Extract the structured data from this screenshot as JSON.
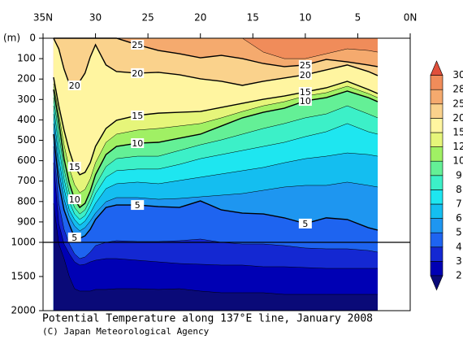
{
  "chart_data": {
    "type": "contour",
    "title": "Potential Temperature along 137°E line, January 2008",
    "credit": "(C) Japan Meteorological Agency",
    "ylabel": "(m)",
    "xlim": [
      35,
      0
    ],
    "xticks": [
      {
        "value": 35,
        "label": "35N"
      },
      30,
      25,
      20,
      15,
      10,
      5,
      {
        "value": 0,
        "label": "0N"
      }
    ],
    "ylim": [
      0,
      2000
    ],
    "ybreak": 1000,
    "yticks": [
      0,
      100,
      200,
      300,
      400,
      500,
      600,
      700,
      800,
      900,
      1000,
      1500,
      2000
    ],
    "levels": [
      2,
      3,
      4,
      5,
      6,
      7,
      8,
      9,
      10,
      12,
      15,
      20,
      25,
      28,
      30
    ],
    "colors": [
      "#0a0a78",
      "#0000b4",
      "#1428d2",
      "#1e64f0",
      "#1e96f0",
      "#14bef0",
      "#1ee6f0",
      "#3cf0c8",
      "#64f096",
      "#a0f064",
      "#e6f57a",
      "#fff5a0",
      "#fad28c",
      "#f5aa6e",
      "#f08c5a",
      "#e0503c"
    ],
    "x": [
      34,
      33.5,
      33,
      32.5,
      32,
      31.5,
      31,
      30.5,
      30,
      29,
      28,
      26,
      24,
      22,
      20,
      18,
      16,
      14,
      12,
      10,
      8,
      6,
      4,
      3.1
    ],
    "isotherms": [
      {
        "level": 28,
        "labeled": false,
        "depths": [
          0,
          0,
          0,
          0,
          0,
          0,
          0,
          0,
          0,
          0,
          0,
          0,
          0,
          0,
          0,
          0,
          0,
          68,
          100,
          100,
          76,
          52,
          60,
          68
        ]
      },
      {
        "level": 25,
        "labeled": true,
        "depths": [
          0,
          0,
          0,
          0,
          0,
          0,
          0,
          0,
          0,
          0,
          0,
          32,
          60,
          76,
          96,
          84,
          100,
          124,
          139,
          131,
          104,
          116,
          131,
          139
        ]
      },
      {
        "level": 20,
        "labeled": true,
        "depths": [
          0,
          52,
          151,
          223,
          231,
          211,
          171,
          92,
          32,
          131,
          163,
          171,
          167,
          179,
          199,
          211,
          231,
          211,
          195,
          179,
          155,
          131,
          163,
          183
        ]
      },
      {
        "level": 15,
        "labeled": true,
        "depths": [
          191,
          331,
          450,
          550,
          629,
          669,
          657,
          610,
          530,
          442,
          402,
          378,
          367,
          363,
          359,
          339,
          319,
          299,
          283,
          263,
          243,
          211,
          251,
          271
        ]
      },
      {
        "level": 12,
        "labeled": false,
        "depths": [
          223,
          371,
          522,
          637,
          717,
          757,
          741,
          689,
          610,
          510,
          470,
          450,
          442,
          430,
          418,
          390,
          359,
          331,
          311,
          283,
          267,
          235,
          271,
          291
        ]
      },
      {
        "level": 10,
        "labeled": true,
        "depths": [
          251,
          410,
          590,
          709,
          789,
          829,
          809,
          749,
          669,
          570,
          530,
          514,
          510,
          490,
          470,
          430,
          390,
          363,
          343,
          307,
          291,
          259,
          291,
          311
        ]
      },
      {
        "level": 9,
        "labeled": false,
        "depths": [
          291,
          470,
          641,
          757,
          829,
          861,
          841,
          789,
          721,
          629,
          590,
          578,
          578,
          550,
          522,
          498,
          470,
          442,
          418,
          390,
          371,
          331,
          371,
          390
        ]
      },
      {
        "level": 8,
        "labeled": false,
        "depths": [
          331,
          530,
          689,
          801,
          861,
          888,
          869,
          821,
          761,
          681,
          649,
          641,
          641,
          618,
          590,
          570,
          550,
          530,
          510,
          482,
          458,
          418,
          458,
          470
        ]
      },
      {
        "level": 7,
        "labeled": false,
        "depths": [
          371,
          590,
          737,
          841,
          888,
          916,
          896,
          857,
          809,
          737,
          713,
          705,
          713,
          697,
          681,
          665,
          649,
          633,
          610,
          590,
          578,
          562,
          570,
          578
        ]
      },
      {
        "level": 6,
        "labeled": false,
        "depths": [
          418,
          649,
          789,
          873,
          920,
          944,
          928,
          896,
          857,
          801,
          781,
          781,
          789,
          785,
          777,
          769,
          761,
          745,
          729,
          721,
          721,
          705,
          721,
          729
        ]
      },
      {
        "level": 5,
        "labeled": true,
        "depths": [
          470,
          709,
          841,
          912,
          976,
          980,
          968,
          936,
          888,
          829,
          817,
          817,
          825,
          829,
          797,
          841,
          857,
          861,
          880,
          908,
          880,
          888,
          928,
          940
        ]
      },
      {
        "level": 4,
        "labeled": false,
        "depths": [
          530,
          809,
          936,
          1024,
          1167,
          1238,
          1214,
          1143,
          1048,
          1000,
          992,
          996,
          996,
          992,
          984,
          1000,
          1024,
          1024,
          1048,
          1083,
          1095,
          1095,
          1119,
          1143
        ]
      },
      {
        "level": 3,
        "labeled": false,
        "depths": [
          610,
          908,
          1024,
          1167,
          1286,
          1333,
          1321,
          1286,
          1262,
          1238,
          1238,
          1262,
          1286,
          1310,
          1321,
          1333,
          1333,
          1357,
          1357,
          1369,
          1381,
          1381,
          1381,
          1381
        ]
      },
      {
        "level": 2,
        "labeled": false,
        "depths": [
          809,
          1024,
          1238,
          1500,
          1679,
          1714,
          1714,
          1714,
          1690,
          1690,
          1679,
          1679,
          1690,
          1679,
          1714,
          1738,
          1738,
          1738,
          1762,
          1762,
          1762,
          1762,
          1762,
          1762
        ]
      }
    ]
  }
}
